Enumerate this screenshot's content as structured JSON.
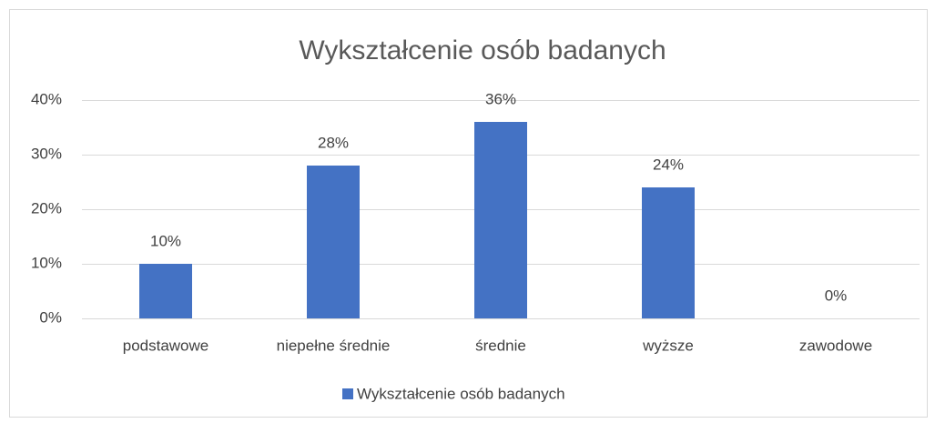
{
  "chart_data": {
    "type": "bar",
    "title": "Wykształcenie osób badanych",
    "categories": [
      "podstawowe",
      "niepełne średnie",
      "średnie",
      "wyższe",
      "zawodowe"
    ],
    "series": [
      {
        "name": "Wykształcenie osób badanych",
        "color": "#4472c4",
        "values": [
          10,
          28,
          36,
          24,
          0
        ],
        "value_labels": [
          "10%",
          "28%",
          "36%",
          "24%",
          "0%"
        ]
      }
    ],
    "ylim": [
      0,
      40
    ],
    "yticks": [
      {
        "value": 0,
        "label": "0%"
      },
      {
        "value": 10,
        "label": "10%"
      },
      {
        "value": 20,
        "label": "20%"
      },
      {
        "value": 30,
        "label": "30%"
      },
      {
        "value": 40,
        "label": "40%"
      }
    ],
    "grid": true,
    "legend": "bottom"
  }
}
